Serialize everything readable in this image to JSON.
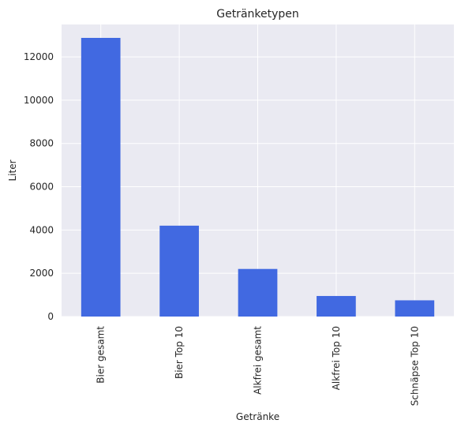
{
  "chart_data": {
    "type": "bar",
    "title": "Getränketypen",
    "xlabel": "Getränke",
    "ylabel": "Liter",
    "categories": [
      "Bier gesamt",
      "Bier Top 10",
      "Alkfrei gesamt",
      "Alkfrei Top 10",
      "Schnäpse Top 10"
    ],
    "values": [
      12880,
      4200,
      2200,
      950,
      750
    ],
    "ylim": [
      0,
      13500
    ],
    "yticks": [
      0,
      2000,
      4000,
      6000,
      8000,
      10000,
      12000
    ],
    "grid": true,
    "bar_color": "#4169e1",
    "background_color": "#eaeaf2",
    "grid_color": "#ffffff"
  }
}
